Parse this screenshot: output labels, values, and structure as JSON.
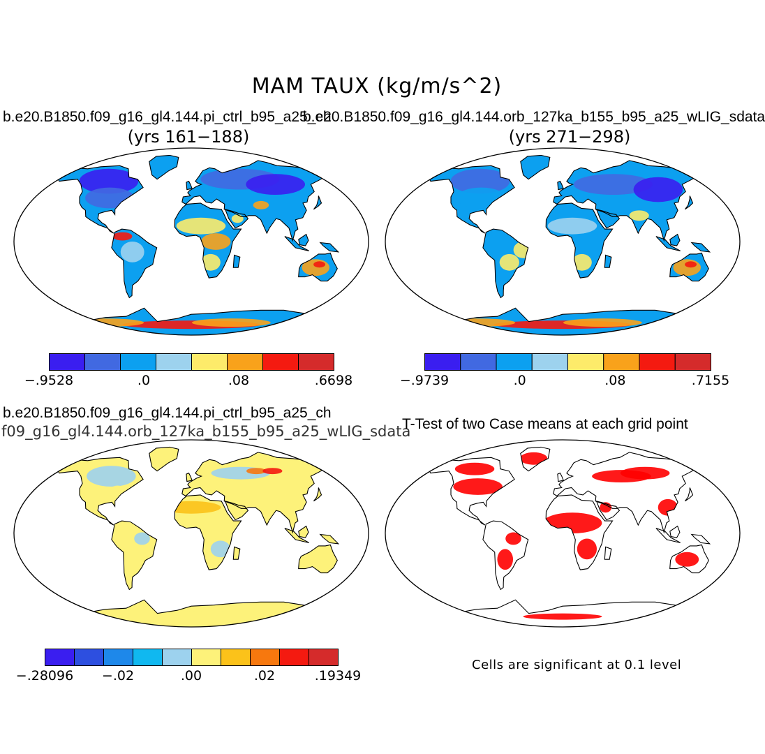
{
  "title": "MAM TAUX (kg/m/s^2)",
  "panels": [
    {
      "case": "b.e20.B1850.f09_g16_gl4.144.pi_ctrl_b95_a25_ch",
      "years": "(yrs 161−188)",
      "colorbar": {
        "colors": [
          "#3a1ef0",
          "#4169e1",
          "#0ca0f0",
          "#9dd2ee",
          "#fdeb6a",
          "#f9a21b",
          "#f41a10",
          "#d52b2b"
        ],
        "labels": [
          "−.9528",
          ".0",
          ".08",
          ".6698"
        ]
      }
    },
    {
      "case": "b.e20.B1850.f09_g16_gl4.144.orb_127ka_b155_b95_a25_wLIG_sdata",
      "years": "(yrs 271−298)",
      "colorbar": {
        "colors": [
          "#3a1ef0",
          "#4169e1",
          "#0ca0f0",
          "#9dd2ee",
          "#fdeb6a",
          "#f9a21b",
          "#f41a10",
          "#d52b2b"
        ],
        "labels": [
          "−.9739",
          ".0",
          ".08",
          ".7155"
        ]
      }
    },
    {
      "case": "b.e20.B1850.f09_g16_gl4.144.pi_ctrl_b95_a25_ch",
      "subtitle": "f09_g16_gl4.144.orb_127ka_b155_b95_a25_wLIG_sdata",
      "colorbar": {
        "colors": [
          "#3a1ef0",
          "#2d4fe0",
          "#1e88ea",
          "#10b8f0",
          "#9dd2ee",
          "#fdf27a",
          "#fbc21a",
          "#f7780e",
          "#f41a10",
          "#d52b2b"
        ],
        "labels": [
          "−.28096",
          "−.02",
          ".00",
          ".02",
          ".19349"
        ]
      }
    },
    {
      "title": "T-Test of two Case means at each grid point",
      "note": "Cells are significant at 0.1 level",
      "color": "#ff0000"
    }
  ]
}
